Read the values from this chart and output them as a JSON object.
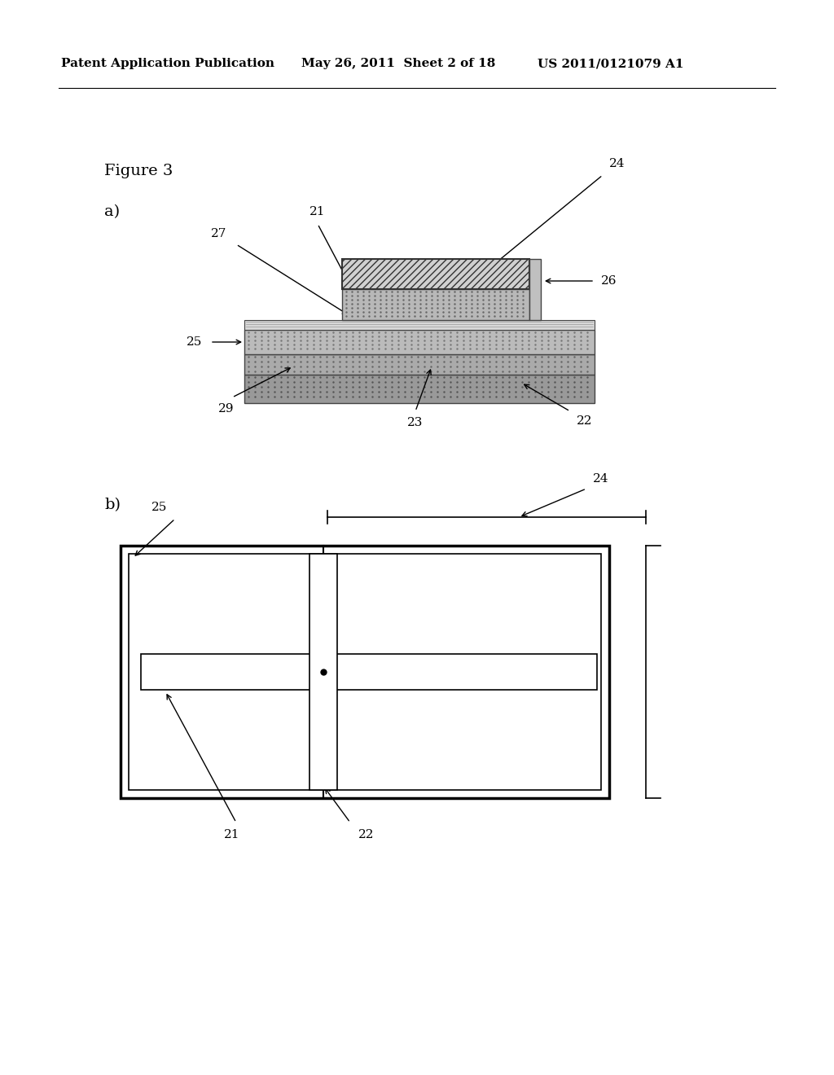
{
  "bg_color": "#ffffff",
  "header_text1": "Patent Application Publication",
  "header_text2": "May 26, 2011  Sheet 2 of 18",
  "header_text3": "US 2011/0121079 A1",
  "figure_label": "Figure 3",
  "sub_a_label": "a)",
  "sub_b_label": "b)"
}
